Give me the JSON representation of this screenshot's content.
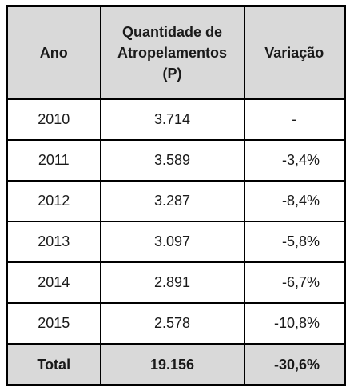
{
  "table": {
    "headers": [
      "Ano",
      "Quantidade de Atropelamentos (P)",
      "Variação"
    ],
    "header_lines": {
      "col2": [
        "Quantidade de",
        "Atropelamentos",
        "(P)"
      ]
    },
    "rows": [
      {
        "ano": "2010",
        "quantidade": "3.714",
        "variacao": "-"
      },
      {
        "ano": "2011",
        "quantidade": "3.589",
        "variacao": "-3,4%"
      },
      {
        "ano": "2012",
        "quantidade": "3.287",
        "variacao": "-8,4%"
      },
      {
        "ano": "2013",
        "quantidade": "3.097",
        "variacao": "-5,8%"
      },
      {
        "ano": "2014",
        "quantidade": "2.891",
        "variacao": "-6,7%"
      },
      {
        "ano": "2015",
        "quantidade": "2.578",
        "variacao": "-10,8%"
      }
    ],
    "total": {
      "label": "Total",
      "quantidade": "19.156",
      "variacao": "-30,6%"
    }
  },
  "colors": {
    "header_bg": "#d9d9d9",
    "border": "#000000"
  }
}
